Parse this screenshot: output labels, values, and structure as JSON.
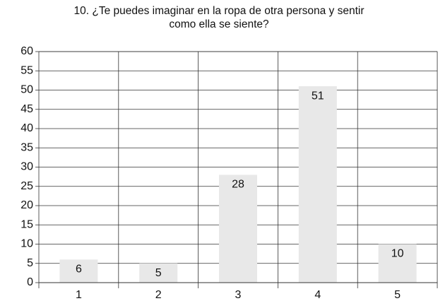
{
  "chart_data": {
    "type": "bar",
    "title": "10. ¿Te puedes imaginar en la ropa de otra persona y sentir como ella se siente?",
    "categories": [
      "1",
      "2",
      "3",
      "4",
      "5"
    ],
    "values": [
      6,
      5,
      28,
      51,
      10
    ],
    "color": "#e8e8e8",
    "ylim": [
      0,
      60
    ],
    "yticks": [
      0,
      5,
      10,
      15,
      20,
      25,
      30,
      35,
      40,
      45,
      50,
      55,
      60
    ],
    "grid": true
  }
}
